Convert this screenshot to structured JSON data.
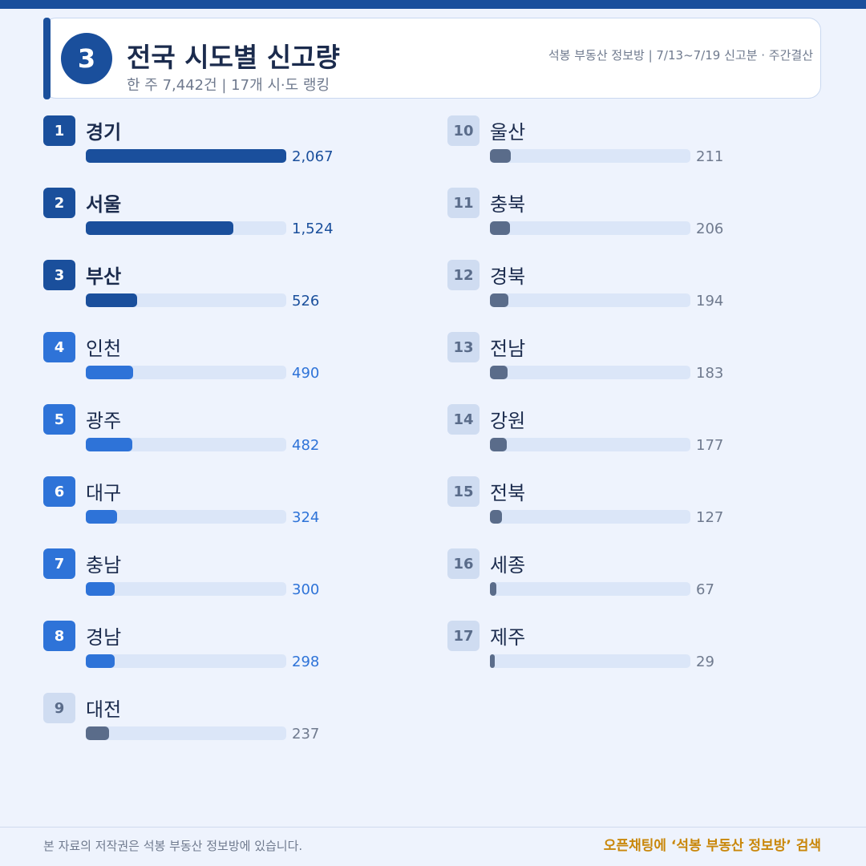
{
  "header": {
    "badge_number": "3",
    "title": "전국 시도별 신고량",
    "subtitle": "한 주 7,442건 | 17개 시·도 랭킹",
    "meta": "석봉 부동산 정보방 | 7/13~7/19 신고분 · 주간결산"
  },
  "colors": {
    "top_rank": "#1a4f9c",
    "mid_rank": "#2e73d8",
    "low_rank": "#5a6c8a",
    "track": "#dbe6f8",
    "accent": "#c9870a"
  },
  "chart_data": {
    "type": "bar",
    "orientation": "horizontal",
    "title": "전국 시도별 신고량",
    "xlim": [
      0,
      2067
    ],
    "categories": [
      "경기",
      "서울",
      "부산",
      "인천",
      "광주",
      "대구",
      "충남",
      "경남",
      "대전",
      "울산",
      "충북",
      "경북",
      "전남",
      "강원",
      "전북",
      "세종",
      "제주"
    ],
    "values": [
      2067,
      1524,
      526,
      490,
      482,
      324,
      300,
      298,
      237,
      211,
      206,
      194,
      183,
      177,
      127,
      67,
      29
    ],
    "value_labels": [
      "2,067",
      "1,524",
      "526",
      "490",
      "482",
      "324",
      "300",
      "298",
      "237",
      "211",
      "206",
      "194",
      "183",
      "177",
      "127",
      "67",
      "29"
    ],
    "ranks": [
      "1",
      "2",
      "3",
      "4",
      "5",
      "6",
      "7",
      "8",
      "9",
      "10",
      "11",
      "12",
      "13",
      "14",
      "15",
      "16",
      "17"
    ]
  },
  "footer": {
    "copyright": "본 자료의 저작권은 석봉 부동산 정보방에 있습니다.",
    "cta": "오픈채팅에 ‘석봉 부동산 정보방’ 검색"
  }
}
